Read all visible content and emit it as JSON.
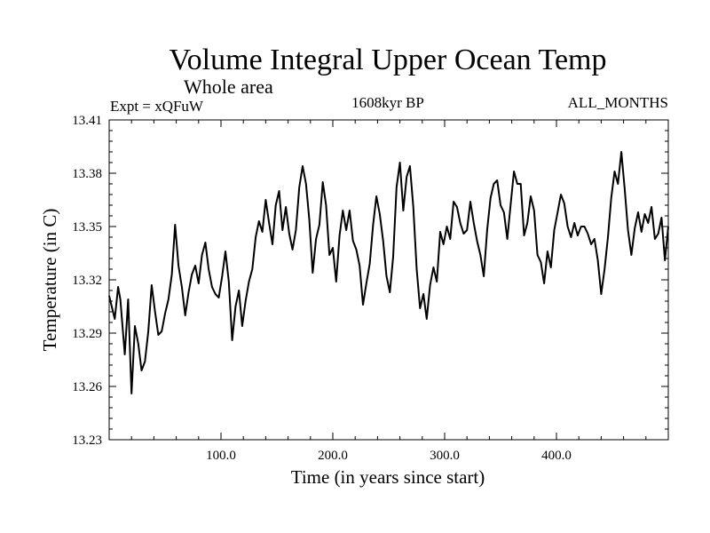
{
  "chart_data": {
    "type": "line",
    "title": "Volume Integral Upper Ocean Temp",
    "subtitle": "Whole area",
    "experiment": "Expt = xQFuW",
    "period": "1608kyr BP",
    "months": "ALL_MONTHS",
    "xlabel": "Time (in years since start)",
    "ylabel": "Temperature (in C)",
    "xlim": [
      0,
      500
    ],
    "ylim": [
      13.23,
      13.41
    ],
    "x_ticks": [
      100,
      200,
      300,
      400
    ],
    "x_tick_labels": [
      "100.0",
      "200.0",
      "300.0",
      "400.0"
    ],
    "y_ticks": [
      13.23,
      13.26,
      13.29,
      13.32,
      13.35,
      13.38,
      13.41
    ],
    "y_tick_labels": [
      "13.23",
      "13.26",
      "13.29",
      "13.32",
      "13.35",
      "13.38",
      "13.41"
    ],
    "grid": false,
    "series": [
      {
        "name": "Temperature",
        "color": "#000000",
        "x": [
          0,
          5,
          8,
          10,
          14,
          17,
          20,
          23,
          26,
          29,
          32,
          35,
          38,
          41,
          44,
          47,
          50,
          53,
          56,
          59,
          62,
          65,
          68,
          71,
          74,
          77,
          80,
          83,
          86,
          89,
          92,
          95,
          98,
          101,
          104,
          107,
          110,
          113,
          116,
          119,
          122,
          125,
          128,
          131,
          134,
          137,
          140,
          143,
          146,
          149,
          152,
          155,
          158,
          161,
          164,
          167,
          170,
          173,
          176,
          179,
          182,
          185,
          188,
          191,
          194,
          197,
          200,
          203,
          206,
          209,
          212,
          215,
          218,
          221,
          224,
          227,
          230,
          233,
          236,
          239,
          242,
          245,
          248,
          251,
          254,
          257,
          260,
          263,
          266,
          269,
          272,
          275,
          278,
          281,
          284,
          287,
          290,
          293,
          296,
          299,
          302,
          305,
          308,
          311,
          314,
          317,
          320,
          323,
          326,
          329,
          332,
          335,
          338,
          341,
          344,
          347,
          350,
          353,
          356,
          359,
          362,
          365,
          368,
          371,
          374,
          377,
          380,
          383,
          386,
          389,
          392,
          395,
          398,
          401,
          404,
          407,
          410,
          413,
          416,
          419,
          422,
          425,
          428,
          431,
          434,
          437,
          440,
          443,
          446,
          449,
          452,
          455,
          458,
          461,
          464,
          467,
          470,
          473,
          476,
          479,
          482,
          485,
          488,
          491,
          494,
          497,
          500
        ],
        "values": [
          13.311,
          13.298,
          13.316,
          13.309,
          13.278,
          13.309,
          13.256,
          13.294,
          13.284,
          13.269,
          13.274,
          13.291,
          13.317,
          13.302,
          13.289,
          13.291,
          13.301,
          13.309,
          13.323,
          13.351,
          13.328,
          13.316,
          13.3,
          13.313,
          13.323,
          13.328,
          13.318,
          13.334,
          13.341,
          13.326,
          13.316,
          13.312,
          13.31,
          13.322,
          13.336,
          13.319,
          13.286,
          13.305,
          13.314,
          13.294,
          13.308,
          13.319,
          13.326,
          13.344,
          13.353,
          13.347,
          13.365,
          13.352,
          13.34,
          13.362,
          13.37,
          13.348,
          13.361,
          13.346,
          13.337,
          13.348,
          13.372,
          13.384,
          13.374,
          13.354,
          13.324,
          13.343,
          13.351,
          13.375,
          13.362,
          13.334,
          13.338,
          13.319,
          13.345,
          13.359,
          13.348,
          13.359,
          13.342,
          13.337,
          13.328,
          13.306,
          13.318,
          13.329,
          13.351,
          13.367,
          13.357,
          13.342,
          13.322,
          13.313,
          13.333,
          13.372,
          13.386,
          13.359,
          13.378,
          13.384,
          13.361,
          13.326,
          13.304,
          13.312,
          13.298,
          13.317,
          13.327,
          13.319,
          13.347,
          13.34,
          13.35,
          13.343,
          13.364,
          13.361,
          13.352,
          13.346,
          13.348,
          13.364,
          13.352,
          13.342,
          13.334,
          13.322,
          13.348,
          13.366,
          13.374,
          13.376,
          13.362,
          13.358,
          13.343,
          13.362,
          13.381,
          13.374,
          13.374,
          13.345,
          13.352,
          13.367,
          13.359,
          13.334,
          13.33,
          13.318,
          13.336,
          13.327,
          13.348,
          13.358,
          13.368,
          13.363,
          13.35,
          13.344,
          13.352,
          13.345,
          13.35,
          13.35,
          13.346,
          13.34,
          13.343,
          13.331,
          13.312,
          13.326,
          13.344,
          13.366,
          13.381,
          13.374,
          13.392,
          13.371,
          13.348,
          13.334,
          13.349,
          13.358,
          13.347,
          13.357,
          13.352,
          13.361,
          13.343,
          13.346,
          13.355,
          13.331,
          13.35
        ]
      }
    ]
  }
}
